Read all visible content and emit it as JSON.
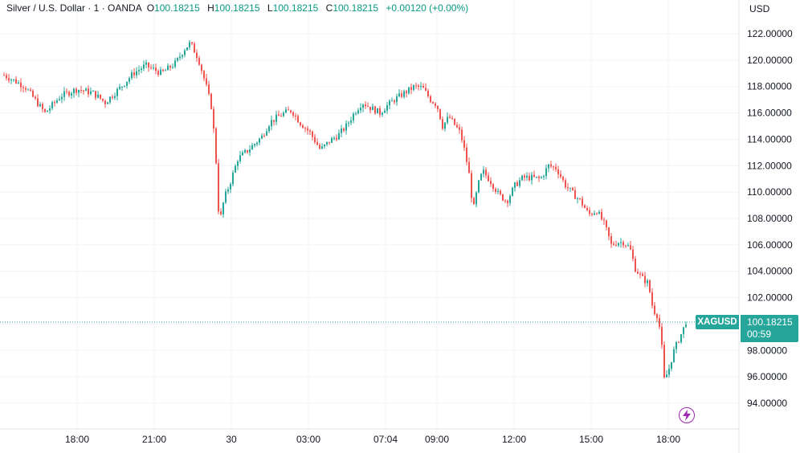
{
  "header": {
    "symbol": "Silver / U.S. Dollar · 1 · OANDA",
    "open_label": "O",
    "open": "100.18215",
    "high_label": "H",
    "high": "100.18215",
    "low_label": "L",
    "low": "100.18215",
    "close_label": "C",
    "close": "100.18215",
    "change": "+0.00120 (+0.00%)"
  },
  "currency": "USD",
  "badge": {
    "symbol": "XAGUSD",
    "price": "100.18215",
    "countdown": "00:59"
  },
  "icons": {
    "bolt": "lightning-bolt-icon"
  },
  "colors": {
    "up": "#26a69a",
    "down": "#ef5350",
    "accent": "#9c27b0",
    "grid": "#f0f3fa"
  },
  "chart_data": {
    "type": "candlestick",
    "title": "Silver / U.S. Dollar · 1 · OANDA",
    "y_tick_labels": [
      "94.00000",
      "96.00000",
      "98.00000",
      "100.00000",
      "102.00000",
      "104.00000",
      "106.00000",
      "108.00000",
      "110.00000",
      "112.00000",
      "114.00000",
      "116.00000",
      "118.00000",
      "120.00000",
      "122.00000"
    ],
    "x_tick_labels": [
      "18:00",
      "21:00",
      "30",
      "03:00",
      "07:04",
      "09:00",
      "12:00",
      "15:00",
      "18:00"
    ],
    "ylim": [
      92.2,
      123.6
    ],
    "last_price": 100.18215,
    "grid": true,
    "series": [
      {
        "values": [
          [
            0,
            119.0
          ],
          [
            30,
            118.0
          ],
          [
            55,
            116.0
          ],
          [
            75,
            117.3
          ],
          [
            95,
            117.8
          ],
          [
            115,
            117.5
          ],
          [
            130,
            116.8
          ],
          [
            150,
            118.0
          ],
          [
            165,
            119.0
          ],
          [
            180,
            119.6
          ],
          [
            200,
            119.0
          ],
          [
            218,
            119.8
          ],
          [
            228,
            120.8
          ],
          [
            236,
            121.3
          ],
          [
            246,
            120.1
          ],
          [
            255,
            118.2
          ],
          [
            262,
            116.5
          ],
          [
            267,
            113.5
          ],
          [
            272,
            107.5
          ],
          [
            278,
            109.5
          ],
          [
            285,
            110.6
          ],
          [
            295,
            112.5
          ],
          [
            310,
            113.3
          ],
          [
            325,
            114.2
          ],
          [
            335,
            115.3
          ],
          [
            350,
            115.9
          ],
          [
            362,
            116.2
          ],
          [
            372,
            115.3
          ],
          [
            385,
            114.5
          ],
          [
            398,
            113.2
          ],
          [
            410,
            113.9
          ],
          [
            420,
            114.3
          ],
          [
            430,
            115.0
          ],
          [
            440,
            116.0
          ],
          [
            450,
            116.8
          ],
          [
            460,
            116.4
          ],
          [
            472,
            116.0
          ],
          [
            480,
            116.5
          ],
          [
            490,
            117.0
          ],
          [
            502,
            117.5
          ],
          [
            515,
            118.0
          ],
          [
            525,
            117.9
          ],
          [
            535,
            117.0
          ],
          [
            543,
            116.6
          ],
          [
            550,
            115.0
          ],
          [
            558,
            115.7
          ],
          [
            565,
            115.1
          ],
          [
            572,
            114.5
          ],
          [
            578,
            113.0
          ],
          [
            584,
            111.0
          ],
          [
            588,
            108.5
          ],
          [
            594,
            110.5
          ],
          [
            600,
            111.6
          ],
          [
            610,
            110.8
          ],
          [
            620,
            109.8
          ],
          [
            630,
            109.3
          ],
          [
            640,
            110.5
          ],
          [
            650,
            111.1
          ],
          [
            660,
            111.1
          ],
          [
            672,
            111.0
          ],
          [
            682,
            112.0
          ],
          [
            692,
            111.8
          ],
          [
            702,
            110.6
          ],
          [
            712,
            109.9
          ],
          [
            722,
            109.3
          ],
          [
            732,
            108.3
          ],
          [
            742,
            108.6
          ],
          [
            752,
            107.5
          ],
          [
            760,
            106.0
          ],
          [
            768,
            106.2
          ],
          [
            775,
            106.2
          ],
          [
            783,
            105.8
          ],
          [
            790,
            104.2
          ],
          [
            798,
            103.5
          ],
          [
            806,
            103.1
          ],
          [
            812,
            101.1
          ],
          [
            818,
            100.6
          ],
          [
            822,
            99.0
          ],
          [
            826,
            95.8
          ],
          [
            831,
            96.4
          ],
          [
            837,
            97.8
          ],
          [
            843,
            98.7
          ],
          [
            849,
            99.5
          ],
          [
            853,
            100.18
          ]
        ]
      }
    ]
  }
}
